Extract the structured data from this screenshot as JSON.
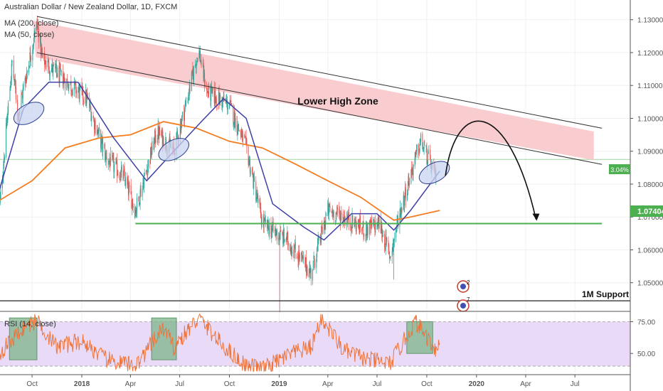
{
  "header": {
    "symbol": "Australian Dollar / New Zealand Dollar, 1D, FXCM",
    "ma200": "MA (200, close)",
    "ma50": "MA (50, close)"
  },
  "rsi": {
    "label": "RSI (14, close)"
  },
  "annotations": {
    "zone": "Lower High Zone",
    "support": "1M Support",
    "pct": "3.04%",
    "price_tag": "1.07404",
    "event_a": "2",
    "event_b": "7"
  },
  "colors": {
    "candle_up": "#26a69a",
    "candle_down": "#ef5350",
    "ma50": "#3f3fa8",
    "ma200": "#f57c1f",
    "zone_fill": "#f8c4c8",
    "support": "#4caf50",
    "rsi_line": "#f0743a",
    "rsi_band": "#e9dbf7"
  },
  "chart_data": {
    "type": "candlestick",
    "title": "Australian Dollar / New Zealand Dollar, 1D, FXCM",
    "xlabel": "",
    "ylabel": "",
    "x_ticks": [
      "Oct",
      "2018",
      "Apr",
      "Jul",
      "Oct",
      "2019",
      "Apr",
      "Jul",
      "Oct",
      "2020",
      "Apr",
      "Jul"
    ],
    "y_ticks": [
      "1.13000",
      "1.12000",
      "1.11000",
      "1.10000",
      "1.09000",
      "1.08000",
      "1.07000",
      "1.06000",
      "1.05000"
    ],
    "ylim": [
      1.0415,
      1.136
    ],
    "price_anchors": [
      {
        "date": "2017-08-01",
        "price": 1.071
      },
      {
        "date": "2017-08-25",
        "price": 1.117
      },
      {
        "date": "2017-09-05",
        "price": 1.101
      },
      {
        "date": "2017-10-10",
        "price": 1.129
      },
      {
        "date": "2017-10-20",
        "price": 1.118
      },
      {
        "date": "2017-11-20",
        "price": 1.113
      },
      {
        "date": "2018-01-10",
        "price": 1.106
      },
      {
        "date": "2018-02-15",
        "price": 1.088
      },
      {
        "date": "2018-03-20",
        "price": 1.082
      },
      {
        "date": "2018-04-10",
        "price": 1.072
      },
      {
        "date": "2018-05-20",
        "price": 1.096
      },
      {
        "date": "2018-06-20",
        "price": 1.09
      },
      {
        "date": "2018-07-15",
        "price": 1.106
      },
      {
        "date": "2018-08-05",
        "price": 1.121
      },
      {
        "date": "2018-08-20",
        "price": 1.108
      },
      {
        "date": "2018-10-01",
        "price": 1.104
      },
      {
        "date": "2018-11-01",
        "price": 1.091
      },
      {
        "date": "2018-12-01",
        "price": 1.068
      },
      {
        "date": "2019-01-15",
        "price": 1.063
      },
      {
        "date": "2019-03-01",
        "price": 1.053
      },
      {
        "date": "2019-04-01",
        "price": 1.072
      },
      {
        "date": "2019-05-01",
        "price": 1.07
      },
      {
        "date": "2019-06-10",
        "price": 1.066
      },
      {
        "date": "2019-07-05",
        "price": 1.068
      },
      {
        "date": "2019-07-25",
        "price": 1.058
      },
      {
        "date": "2019-08-10",
        "price": 1.07
      },
      {
        "date": "2019-09-01",
        "price": 1.083
      },
      {
        "date": "2019-09-20",
        "price": 1.093
      },
      {
        "date": "2019-10-10",
        "price": 1.085
      },
      {
        "date": "2019-10-20",
        "price": 1.081
      }
    ],
    "wick_spikes": [
      {
        "date": "2019-01-02",
        "low": 1.041
      },
      {
        "date": "2019-08-01",
        "low": 1.051
      }
    ],
    "ma50": [
      {
        "date": "2017-08-01",
        "value": 1.078
      },
      {
        "date": "2017-09-15",
        "value": 1.103
      },
      {
        "date": "2017-11-01",
        "value": 1.111
      },
      {
        "date": "2017-12-25",
        "value": 1.111
      },
      {
        "date": "2018-03-01",
        "value": 1.094
      },
      {
        "date": "2018-05-01",
        "value": 1.081
      },
      {
        "date": "2018-06-20",
        "value": 1.09
      },
      {
        "date": "2018-08-10",
        "value": 1.099
      },
      {
        "date": "2018-09-20",
        "value": 1.106
      },
      {
        "date": "2018-11-01",
        "value": 1.1
      },
      {
        "date": "2018-12-20",
        "value": 1.074
      },
      {
        "date": "2019-02-15",
        "value": 1.067
      },
      {
        "date": "2019-03-25",
        "value": 1.063
      },
      {
        "date": "2019-05-15",
        "value": 1.071
      },
      {
        "date": "2019-07-01",
        "value": 1.071
      },
      {
        "date": "2019-08-01",
        "value": 1.066
      },
      {
        "date": "2019-09-01",
        "value": 1.072
      },
      {
        "date": "2019-10-25",
        "value": 1.084
      }
    ],
    "ma200": [
      {
        "date": "2017-08-01",
        "value": 1.075
      },
      {
        "date": "2017-10-01",
        "value": 1.081
      },
      {
        "date": "2017-12-01",
        "value": 1.091
      },
      {
        "date": "2018-02-01",
        "value": 1.094
      },
      {
        "date": "2018-04-01",
        "value": 1.095
      },
      {
        "date": "2018-06-01",
        "value": 1.099
      },
      {
        "date": "2018-08-01",
        "value": 1.097
      },
      {
        "date": "2018-10-01",
        "value": 1.093
      },
      {
        "date": "2018-12-01",
        "value": 1.091
      },
      {
        "date": "2019-02-01",
        "value": 1.086
      },
      {
        "date": "2019-04-01",
        "value": 1.081
      },
      {
        "date": "2019-06-01",
        "value": 1.076
      },
      {
        "date": "2019-08-01",
        "value": 1.069
      },
      {
        "date": "2019-09-01",
        "value": 1.07
      },
      {
        "date": "2019-10-25",
        "value": 1.072
      }
    ],
    "trendlines": {
      "upper": [
        {
          "date": "2017-10-10",
          "price": 1.131
        },
        {
          "date": "2020-08-20",
          "price": 1.097
        }
      ],
      "lower": [
        {
          "date": "2017-10-10",
          "price": 1.12
        },
        {
          "date": "2020-08-20",
          "price": 1.086
        }
      ]
    },
    "support_line": {
      "price": 1.068,
      "from": "2018-04-10",
      "to": "2020-08-20"
    },
    "m1_support": {
      "price": 1.0445
    },
    "reference_price": 1.0875,
    "last_price": 1.07404,
    "projection": {
      "from": "2019-10-25",
      "peak": "2019-12-31",
      "target_date": "2020-04-20",
      "target_price": 1.068
    },
    "rsi_ylim": [
      35,
      82
    ],
    "rsi_ticks": [
      "75.00",
      "50.00"
    ],
    "rsi_bands": [
      30,
      70
    ],
    "rsi_anchors": [
      {
        "date": "2017-08-01",
        "value": 50
      },
      {
        "date": "2017-09-15",
        "value": 70
      },
      {
        "date": "2017-10-10",
        "value": 76
      },
      {
        "date": "2017-11-15",
        "value": 55
      },
      {
        "date": "2018-01-01",
        "value": 60
      },
      {
        "date": "2018-02-15",
        "value": 45
      },
      {
        "date": "2018-04-10",
        "value": 40
      },
      {
        "date": "2018-06-01",
        "value": 70
      },
      {
        "date": "2018-06-20",
        "value": 55
      },
      {
        "date": "2018-08-05",
        "value": 78
      },
      {
        "date": "2018-09-15",
        "value": 58
      },
      {
        "date": "2018-11-01",
        "value": 40
      },
      {
        "date": "2018-12-05",
        "value": 38
      },
      {
        "date": "2019-01-15",
        "value": 48
      },
      {
        "date": "2019-03-01",
        "value": 55
      },
      {
        "date": "2019-03-20",
        "value": 78
      },
      {
        "date": "2019-05-01",
        "value": 52
      },
      {
        "date": "2019-06-15",
        "value": 45
      },
      {
        "date": "2019-07-25",
        "value": 42
      },
      {
        "date": "2019-08-20",
        "value": 60
      },
      {
        "date": "2019-09-10",
        "value": 75
      },
      {
        "date": "2019-10-20",
        "value": 52
      },
      {
        "date": "2019-10-25",
        "value": 60
      }
    ],
    "rsi_boxes": [
      {
        "from": "2017-08-20",
        "to": "2017-10-10",
        "low": 45,
        "high": 78
      },
      {
        "from": "2018-05-10",
        "to": "2018-06-25",
        "low": 45,
        "high": 78
      },
      {
        "from": "2019-08-25",
        "to": "2019-10-12",
        "low": 50,
        "high": 75
      }
    ],
    "highlight_ellipses": [
      {
        "date": "2017-09-25",
        "price": 1.1015
      },
      {
        "date": "2018-06-20",
        "price": 1.0905
      },
      {
        "date": "2019-10-15",
        "price": 1.0835
      }
    ]
  }
}
